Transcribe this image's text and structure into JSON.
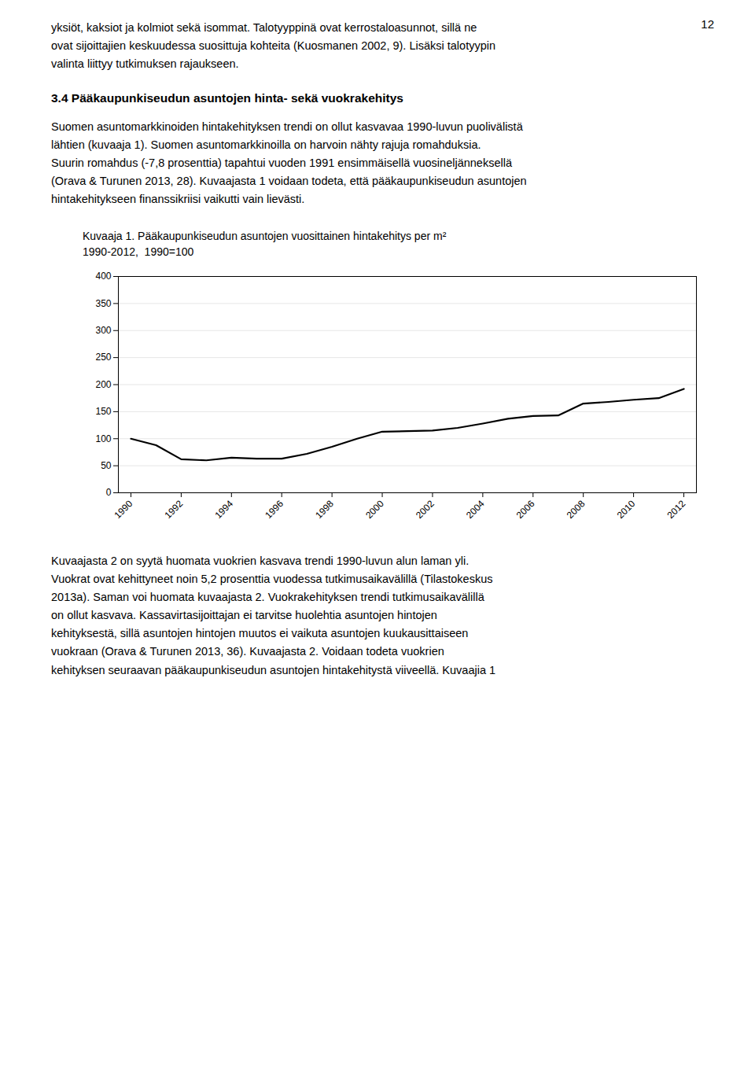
{
  "page": {
    "page_number": "12",
    "paragraphs_before": [
      "yksiöt, kaksiot ja kolmiot sekä isommat.  Talotyyppinä ovat kerrostaloasunnot, sillä ne\novat sijoittajien keskuudessa suosittuja kohteita (Kuosmanen 2002, 9).  Lisäksi talotyypin\nvalinta liittyy tutkimuksen rajaukseen."
    ],
    "heading": "3.4 Pääkaupunkiseudun asuntojen hinta- sekä vuokrakehitys",
    "paragraphs_after_heading": [
      "Suomen asuntomarkkinoiden hintakehityksen trendi on ollut kasvavaa 1990-luvun puolivälistä\nlähtien (kuvaaja 1).   Suomen asuntomarkkinoilla on harvoin nähty rajuja romahduksia.\nSuurin romahdus (-7,8 prosenttia) tapahtui vuoden 1991 ensimmäisellä vuosineljänneksellä\n(Orava & Turunen 2013, 28).  Kuvaajasta 1 voidaan todeta, että pääkaupunkiseudun asuntojen\nhintakehitykseen finanssikriisi vaikutti vain lievästi."
    ],
    "paragraphs_after_chart": [
      "Kuvaajasta 2 on syytä huomata vuokrien kasvava trendi 1990-luvun alun laman yli.\nVuokrat ovat kehittyneet noin 5,2 prosenttia vuodessa tutkimusaikavälillä (Tilastokeskus\n2013a).  Saman voi huomata kuvaajasta 2.  Vuokrakehityksen trendi tutkimusaikavälillä\non ollut kasvava.   Kassavirtasijoittajan ei tarvitse huolehtia asuntojen hintojen\nkehityksestä, sillä asuntojen hintojen muutos ei vaikuta asuntojen kuukausittaiseen\nvuokraan (Orava & Turunen 2013, 36).  Kuvaajasta 2. Voidaan todeta vuokrien\nkehityksen seuraavan pääkaupunkiseudun asuntojen hintakehitystä viiveellä.  Kuvaajia 1"
    ]
  },
  "chart_data": {
    "type": "line",
    "title": "Kuvaaja 1. Pääkaupunkiseudun asuntojen vuosittainen hintakehitys per m²",
    "subtitle": "1990-2012,  1990=100",
    "x": [
      1990,
      1991,
      1992,
      1993,
      1994,
      1995,
      1996,
      1997,
      1998,
      1999,
      2000,
      2001,
      2002,
      2003,
      2004,
      2005,
      2006,
      2007,
      2008,
      2009,
      2010,
      2011,
      2012
    ],
    "values": [
      100,
      88,
      62,
      60,
      65,
      63,
      63,
      72,
      85,
      100,
      113,
      114,
      115,
      120,
      128,
      137,
      142,
      143,
      165,
      168,
      172,
      175,
      192
    ],
    "color": "#000000",
    "xlim": [
      1989.5,
      2012.5
    ],
    "xticks": [
      1990,
      1992,
      1994,
      1996,
      1998,
      2000,
      2002,
      2004,
      2006,
      2008,
      2010,
      2012
    ],
    "ylim": [
      0,
      400
    ],
    "yticks": [
      0,
      50,
      100,
      150,
      200,
      250,
      300,
      350,
      400
    ],
    "grid": true
  }
}
